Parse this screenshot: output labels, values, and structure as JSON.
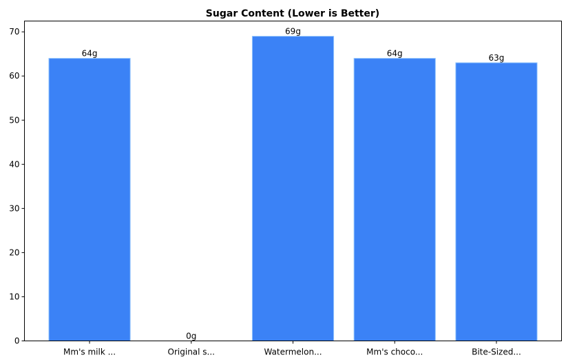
{
  "chart_data": {
    "type": "bar",
    "title": "Sugar Content (Lower is Better)",
    "xlabel": "",
    "ylabel": "",
    "categories": [
      "Mm's milk ...",
      "Original s...",
      "Watermelon...",
      "Mm's choco...",
      "Bite-Sized..."
    ],
    "values": [
      64,
      0,
      69,
      64,
      63
    ],
    "data_labels": [
      "64g",
      "0g",
      "69g",
      "64g",
      "63g"
    ],
    "ylim": [
      0,
      72.45
    ],
    "yticks": [
      0,
      10,
      20,
      30,
      40,
      50,
      60,
      70
    ],
    "grid": false,
    "legend": "none",
    "bar_color": "#3b82f6",
    "bar_edge_color": "#93c5fd"
  }
}
